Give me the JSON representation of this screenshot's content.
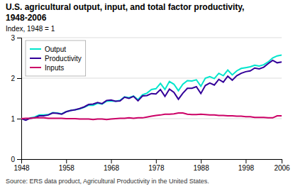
{
  "chart_data": {
    "type": "line",
    "title": "U.S. agricultural output, input, and total factor productivity, 1948-2006",
    "y_label": "Index, 1948 = 1",
    "source": "Source: ERS data product, Agricultural Productivity in the United States.",
    "x": [
      1948,
      1949,
      1950,
      1951,
      1952,
      1953,
      1954,
      1955,
      1956,
      1957,
      1958,
      1959,
      1960,
      1961,
      1962,
      1963,
      1964,
      1965,
      1966,
      1967,
      1968,
      1969,
      1970,
      1971,
      1972,
      1973,
      1974,
      1975,
      1976,
      1977,
      1978,
      1979,
      1980,
      1981,
      1982,
      1983,
      1984,
      1985,
      1986,
      1987,
      1988,
      1989,
      1990,
      1991,
      1992,
      1993,
      1994,
      1995,
      1996,
      1997,
      1998,
      1999,
      2000,
      2001,
      2002,
      2003,
      2004,
      2005,
      2006
    ],
    "series": [
      {
        "name": "Output",
        "color": "#00E5CC",
        "values": [
          1.0,
          0.97,
          1.02,
          1.04,
          1.09,
          1.09,
          1.1,
          1.15,
          1.14,
          1.12,
          1.17,
          1.2,
          1.22,
          1.24,
          1.28,
          1.33,
          1.33,
          1.38,
          1.36,
          1.43,
          1.44,
          1.43,
          1.45,
          1.54,
          1.52,
          1.56,
          1.47,
          1.59,
          1.63,
          1.72,
          1.74,
          1.87,
          1.72,
          1.92,
          1.85,
          1.69,
          1.85,
          1.94,
          1.93,
          1.96,
          1.8,
          2.0,
          2.04,
          1.99,
          2.12,
          2.06,
          2.2,
          2.08,
          2.18,
          2.24,
          2.26,
          2.28,
          2.32,
          2.3,
          2.33,
          2.4,
          2.5,
          2.55,
          2.57
        ]
      },
      {
        "name": "Productivity",
        "color": "#330099",
        "values": [
          1.0,
          0.96,
          1.01,
          1.02,
          1.07,
          1.07,
          1.09,
          1.14,
          1.13,
          1.11,
          1.17,
          1.2,
          1.22,
          1.25,
          1.29,
          1.35,
          1.36,
          1.4,
          1.37,
          1.45,
          1.46,
          1.43,
          1.44,
          1.53,
          1.5,
          1.55,
          1.44,
          1.56,
          1.57,
          1.62,
          1.61,
          1.72,
          1.55,
          1.73,
          1.65,
          1.48,
          1.63,
          1.75,
          1.75,
          1.79,
          1.62,
          1.82,
          1.88,
          1.83,
          1.97,
          1.9,
          2.05,
          1.95,
          2.06,
          2.12,
          2.16,
          2.18,
          2.25,
          2.23,
          2.27,
          2.36,
          2.44,
          2.38,
          2.4
        ]
      },
      {
        "name": "Inputs",
        "color": "#CC0066",
        "values": [
          1.0,
          1.01,
          1.01,
          1.02,
          1.02,
          1.02,
          1.01,
          1.01,
          1.01,
          1.01,
          1.0,
          1.0,
          1.0,
          0.99,
          0.99,
          0.99,
          0.98,
          0.99,
          0.99,
          0.98,
          0.99,
          1.0,
          1.01,
          1.01,
          1.02,
          1.01,
          1.02,
          1.02,
          1.04,
          1.06,
          1.08,
          1.09,
          1.11,
          1.11,
          1.12,
          1.14,
          1.14,
          1.11,
          1.1,
          1.1,
          1.11,
          1.1,
          1.09,
          1.09,
          1.08,
          1.08,
          1.07,
          1.07,
          1.06,
          1.06,
          1.05,
          1.05,
          1.03,
          1.03,
          1.03,
          1.02,
          1.02,
          1.07,
          1.07
        ]
      }
    ],
    "xlim": [
      1948,
      2006
    ],
    "ylim": [
      0,
      3
    ],
    "xticks": [
      1948,
      1958,
      1968,
      1978,
      1988,
      1998,
      2006
    ],
    "yticks": [
      0,
      1,
      2,
      3
    ],
    "grid": true,
    "legend": "top-left"
  }
}
